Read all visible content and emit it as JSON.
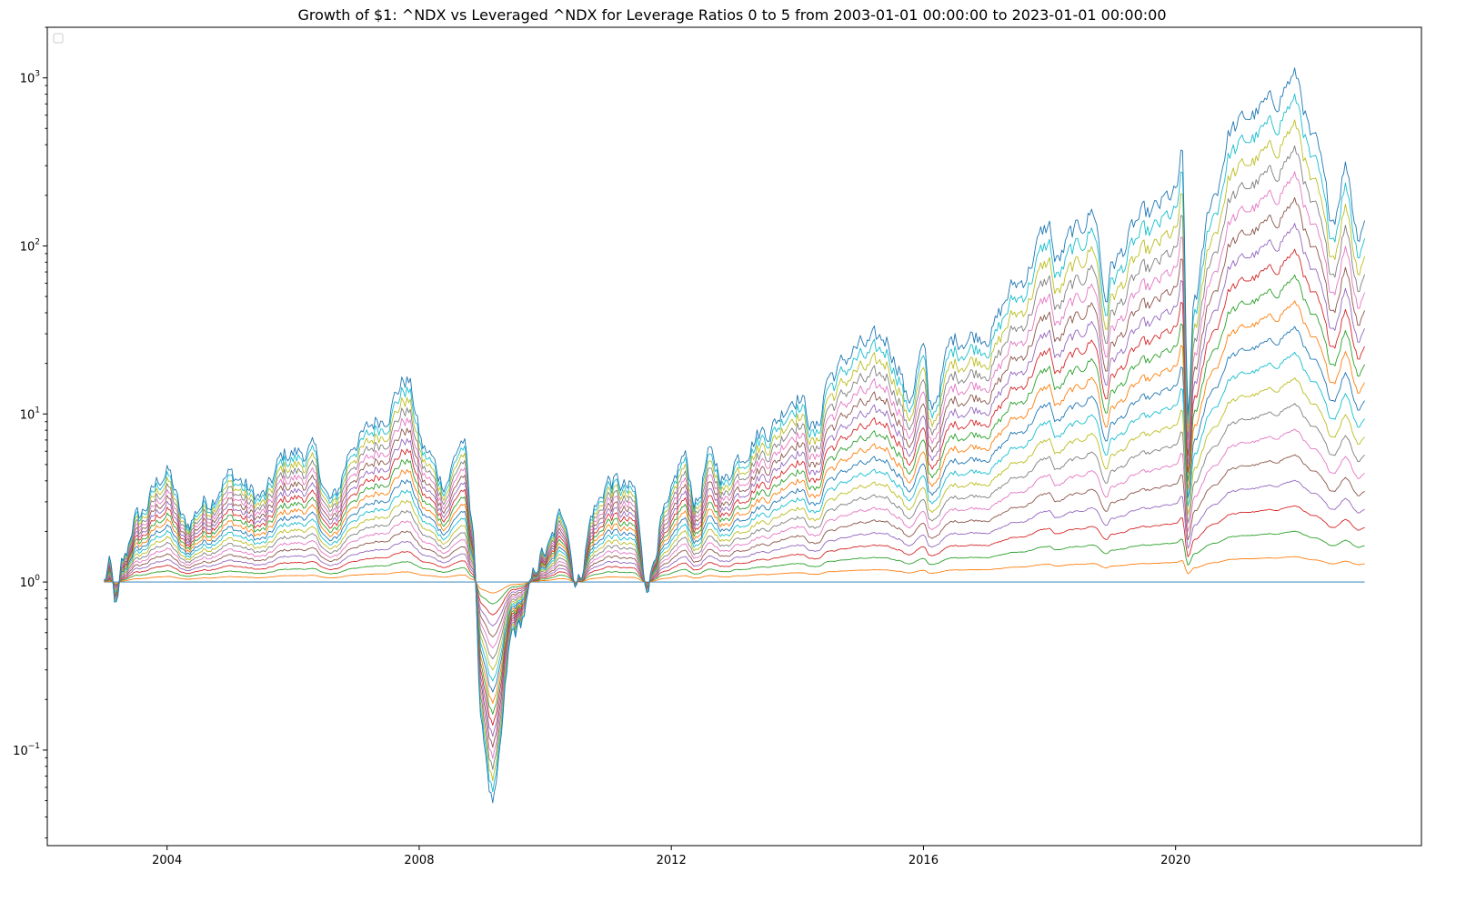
{
  "chart_data": {
    "type": "line",
    "title": "Growth of $1: ^NDX vs Leveraged ^NDX for Leverage Ratios 0 to 5 from 2003-01-01 00:00:00 to 2023-01-01 00:00:00",
    "xlabel": "",
    "ylabel": "",
    "yscale": "log",
    "xlim": [
      2002.1,
      2023.9
    ],
    "ylim": [
      0.027,
      2000
    ],
    "x_ticks": [
      2004,
      2008,
      2012,
      2016,
      2020
    ],
    "x_tick_labels": [
      "2004",
      "2008",
      "2012",
      "2016",
      "2020"
    ],
    "y_ticks": [
      0.1,
      1,
      10,
      100,
      1000
    ],
    "y_tick_labels": [
      {
        "base": "10",
        "exp": "−1"
      },
      {
        "base": "10",
        "exp": "0"
      },
      {
        "base": "10",
        "exp": "1"
      },
      {
        "base": "10",
        "exp": "2"
      },
      {
        "base": "10",
        "exp": "3"
      }
    ],
    "legend": {
      "placement": "upper left",
      "entries": []
    },
    "grid": false,
    "leverage_ratios": [
      0,
      0.25,
      0.5,
      0.75,
      1,
      1.25,
      1.5,
      1.75,
      2,
      2.25,
      2.5,
      2.75,
      3,
      3.25,
      3.5,
      3.75,
      4,
      4.25,
      4.5,
      4.75,
      5
    ],
    "colors": [
      "#1f77b4",
      "#ff7f0e",
      "#2ca02c",
      "#d62728",
      "#9467bd",
      "#8c564b",
      "#e377c2",
      "#7f7f7f",
      "#bcbd22",
      "#17becf"
    ],
    "top_series_anchors": {
      "x": [
        2003.0,
        2003.08,
        2003.2,
        2003.3,
        2003.5,
        2004.0,
        2004.3,
        2004.6,
        2005.0,
        2005.5,
        2005.9,
        2006.3,
        2006.6,
        2007.0,
        2007.4,
        2007.8,
        2008.1,
        2008.4,
        2008.7,
        2008.85,
        2009.0,
        2009.17,
        2009.5,
        2010.0,
        2010.3,
        2010.5,
        2010.8,
        2011.0,
        2011.4,
        2011.6,
        2011.9,
        2012.2,
        2012.4,
        2012.6,
        2012.9,
        2013.0,
        2013.5,
        2014.0,
        2014.3,
        2014.5,
        2015.0,
        2015.4,
        2015.6,
        2015.75,
        2016.0,
        2016.1,
        2016.5,
        2017.0,
        2017.5,
        2018.0,
        2018.1,
        2018.4,
        2018.7,
        2018.9,
        2019.0,
        2019.5,
        2020.0,
        2020.1,
        2020.2,
        2020.3,
        2020.6,
        2020.9,
        2021.2,
        2021.5,
        2021.9,
        2022.2,
        2022.5,
        2022.7,
        2022.9,
        2023.0
      ],
      "y": [
        1.0,
        1.25,
        0.7,
        1.3,
        2.4,
        4.5,
        2.2,
        3.0,
        4.3,
        3.2,
        5.8,
        6.0,
        3.0,
        7.0,
        9.5,
        16.0,
        6.0,
        4.0,
        7.0,
        2.0,
        0.12,
        0.05,
        0.5,
        1.5,
        2.6,
        1.0,
        2.8,
        4.0,
        3.5,
        1.0,
        2.5,
        5.5,
        3.0,
        5.5,
        4.0,
        5.5,
        8.0,
        13.0,
        8.0,
        17.0,
        25.0,
        28.0,
        20.0,
        12.0,
        24.0,
        11.0,
        28.0,
        30.0,
        60.0,
        130.0,
        80.0,
        120.0,
        160.0,
        50.0,
        80.0,
        150.0,
        200.0,
        350.0,
        10.0,
        50.0,
        200.0,
        500.0,
        600.0,
        700.0,
        1000.0,
        400.0,
        150.0,
        300.0,
        120.0,
        150.0
      ]
    }
  }
}
